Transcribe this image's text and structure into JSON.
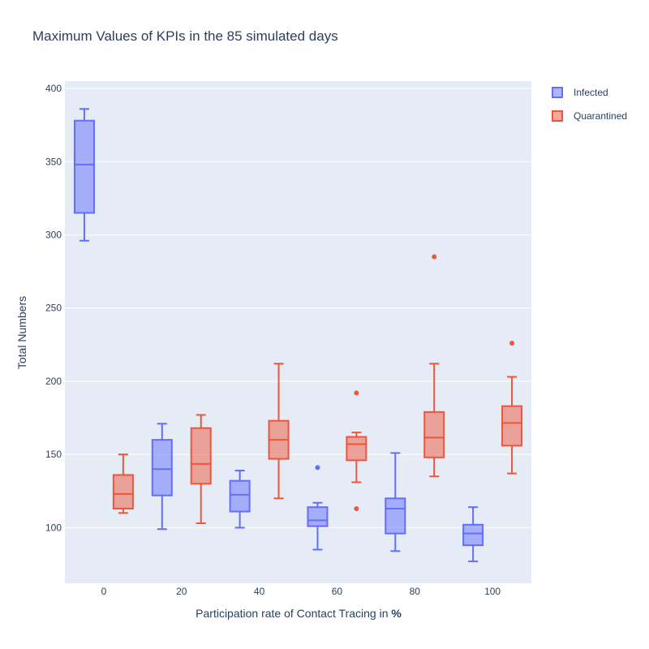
{
  "chart_data": {
    "type": "box",
    "title": "Maximum Values of KPIs in the 85 simulated days",
    "xlabel_prefix": "Participation rate of Contact Tracing in ",
    "xlabel_bold": "%",
    "ylabel": "Total Numbers",
    "ylim": [
      62,
      405
    ],
    "xlim": [
      -10,
      110
    ],
    "categories": [
      0,
      20,
      40,
      60,
      80,
      100
    ],
    "x_ticks": [
      "0",
      "20",
      "40",
      "60",
      "80",
      "100"
    ],
    "y_ticks": [
      100,
      150,
      200,
      250,
      300,
      350,
      400
    ],
    "grid": true,
    "legend_position": "top-right",
    "series": [
      {
        "name": "Infected",
        "color": "#636efa",
        "fill": "rgba(99,110,250,0.5)",
        "boxes": [
          {
            "x": 0,
            "min": 296,
            "q1": 315,
            "median": 348,
            "q3": 378,
            "max": 386,
            "outliers": []
          },
          {
            "x": 20,
            "min": 99,
            "q1": 122,
            "median": 140,
            "q3": 160,
            "max": 171,
            "outliers": []
          },
          {
            "x": 40,
            "min": 100,
            "q1": 111,
            "median": 122.5,
            "q3": 132,
            "max": 139,
            "outliers": []
          },
          {
            "x": 60,
            "min": 85,
            "q1": 101,
            "median": 105,
            "q3": 114,
            "max": 117,
            "outliers": [
              141
            ]
          },
          {
            "x": 80,
            "min": 84,
            "q1": 96,
            "median": 113,
            "q3": 120,
            "max": 151,
            "outliers": []
          },
          {
            "x": 100,
            "min": 77,
            "q1": 88,
            "median": 96,
            "q3": 102,
            "max": 114,
            "outliers": []
          }
        ]
      },
      {
        "name": "Quarantined",
        "color": "#ef553b",
        "fill": "rgba(239,85,59,0.5)",
        "boxes": [
          {
            "x": 0,
            "min": 110,
            "q1": 113,
            "median": 123,
            "q3": 136,
            "max": 150,
            "outliers": []
          },
          {
            "x": 20,
            "min": 103,
            "q1": 130,
            "median": 143.5,
            "q3": 168,
            "max": 177,
            "outliers": []
          },
          {
            "x": 40,
            "min": 120,
            "q1": 147,
            "median": 160,
            "q3": 173,
            "max": 212,
            "outliers": []
          },
          {
            "x": 60,
            "min": 131,
            "q1": 146,
            "median": 157,
            "q3": 162,
            "max": 165,
            "outliers": [
              192,
              113
            ]
          },
          {
            "x": 80,
            "min": 135,
            "q1": 148,
            "median": 161.5,
            "q3": 179,
            "max": 212,
            "outliers": [
              285
            ]
          },
          {
            "x": 100,
            "min": 137,
            "q1": 156,
            "median": 171.5,
            "q3": 183,
            "max": 203,
            "outliers": [
              226
            ]
          }
        ]
      }
    ]
  }
}
